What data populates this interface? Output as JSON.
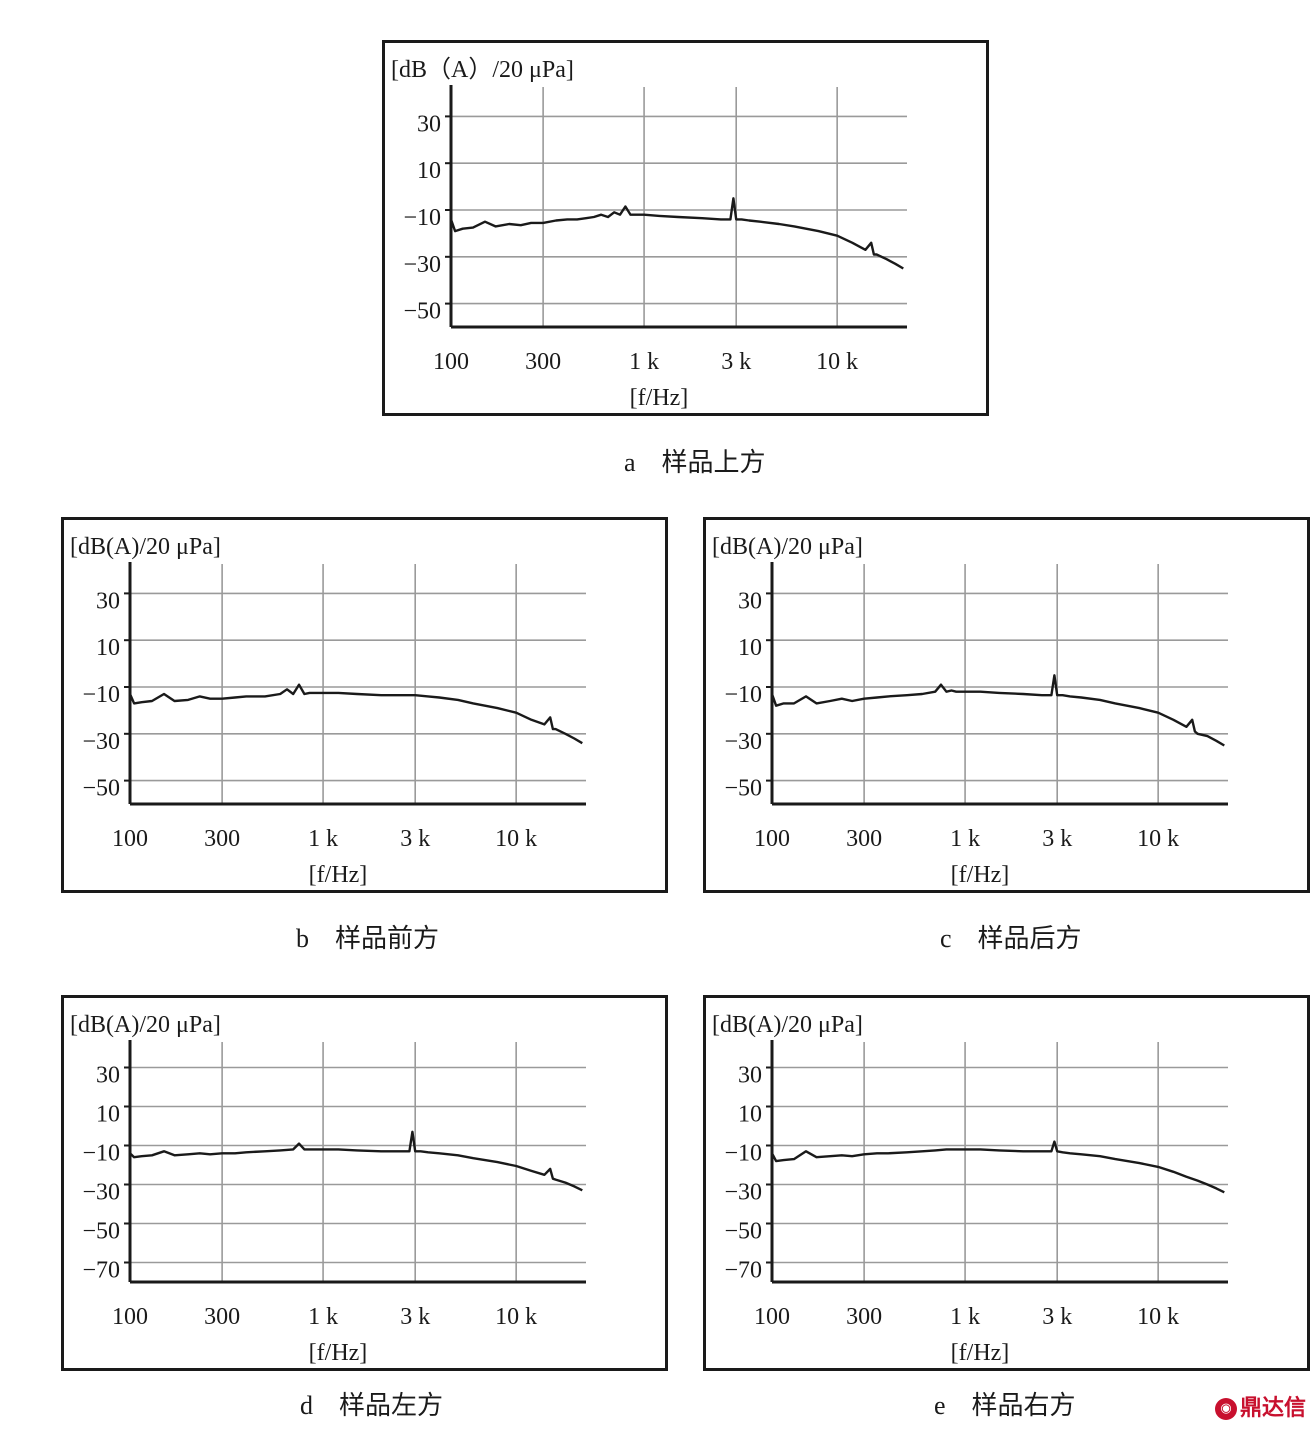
{
  "watermark": "鼎达信",
  "chart_data": [
    {
      "id": "a",
      "type": "line",
      "caption_letter": "a",
      "caption_text": "样品上方",
      "ylabel": "[dB（A）/20 μPa]",
      "xlabel": "[f/Hz]",
      "x_scale": "log",
      "xlim": [
        100,
        23000
      ],
      "ylim": [
        -60,
        40
      ],
      "x_ticks": [
        {
          "value": 100,
          "label": "100"
        },
        {
          "value": 300,
          "label": "300"
        },
        {
          "value": 1000,
          "label": "1 k"
        },
        {
          "value": 3000,
          "label": "3 k"
        },
        {
          "value": 10000,
          "label": "10 k"
        }
      ],
      "y_ticks": [
        {
          "value": 30,
          "label": "30"
        },
        {
          "value": 10,
          "label": "10"
        },
        {
          "value": -10,
          "label": "−10"
        },
        {
          "value": -30,
          "label": "−30"
        },
        {
          "value": -50,
          "label": "−50"
        }
      ],
      "grid": true,
      "series": [
        {
          "x": [
            100,
            105,
            115,
            130,
            150,
            170,
            200,
            230,
            260,
            300,
            350,
            400,
            450,
            500,
            550,
            600,
            650,
            700,
            750,
            800,
            850,
            900,
            1000,
            1200,
            1500,
            2000,
            2500,
            2800,
            2900,
            3000,
            3200,
            3500,
            4000,
            5000,
            6000,
            8000,
            10000,
            12000,
            14000,
            15000,
            15500,
            16000,
            18000,
            20000,
            22000
          ],
          "y": [
            -14,
            -19,
            -18,
            -17.5,
            -15,
            -17,
            -16,
            -16.5,
            -15.5,
            -15.5,
            -14.5,
            -14,
            -14,
            -13.5,
            -13,
            -12,
            -13,
            -11,
            -12,
            -8.5,
            -12,
            -12,
            -12,
            -12.5,
            -13,
            -13.5,
            -14,
            -14,
            -5,
            -14,
            -14,
            -14.5,
            -15,
            -16,
            -17,
            -19,
            -21,
            -24,
            -27,
            -24,
            -29,
            -29,
            -31,
            -33,
            -35
          ]
        }
      ]
    },
    {
      "id": "b",
      "type": "line",
      "caption_letter": "b",
      "caption_text": "样品前方",
      "ylabel": "[dB(A)/20 μPa]",
      "xlabel": "[f/Hz]",
      "x_scale": "log",
      "xlim": [
        100,
        23000
      ],
      "ylim": [
        -60,
        40
      ],
      "x_ticks": [
        {
          "value": 100,
          "label": "100"
        },
        {
          "value": 300,
          "label": "300"
        },
        {
          "value": 1000,
          "label": "1 k"
        },
        {
          "value": 3000,
          "label": "3 k"
        },
        {
          "value": 10000,
          "label": "10 k"
        }
      ],
      "y_ticks": [
        {
          "value": 30,
          "label": "30"
        },
        {
          "value": 10,
          "label": "10"
        },
        {
          "value": -10,
          "label": "−10"
        },
        {
          "value": -30,
          "label": "−30"
        },
        {
          "value": -50,
          "label": "−50"
        }
      ],
      "grid": true,
      "series": [
        {
          "x": [
            100,
            105,
            115,
            130,
            150,
            170,
            200,
            230,
            260,
            300,
            350,
            400,
            500,
            600,
            650,
            700,
            750,
            800,
            850,
            900,
            1000,
            1200,
            1500,
            2000,
            2500,
            3000,
            3500,
            4000,
            5000,
            6000,
            8000,
            10000,
            12000,
            14000,
            15000,
            15500,
            16000,
            18000,
            20000,
            22000
          ],
          "y": [
            -13,
            -17,
            -16.5,
            -16,
            -13,
            -16,
            -15.5,
            -14,
            -15,
            -15,
            -14.5,
            -14,
            -14,
            -13,
            -11,
            -13,
            -9,
            -13,
            -12.5,
            -12.5,
            -12.5,
            -12.5,
            -13,
            -13.5,
            -13.5,
            -13.5,
            -14,
            -14.5,
            -15.5,
            -17,
            -19,
            -21,
            -24,
            -26,
            -23,
            -28,
            -28,
            -30,
            -32,
            -34
          ]
        }
      ]
    },
    {
      "id": "c",
      "type": "line",
      "caption_letter": "c",
      "caption_text": "样品后方",
      "ylabel": "[dB(A)/20 μPa]",
      "xlabel": "[f/Hz]",
      "x_scale": "log",
      "xlim": [
        100,
        23000
      ],
      "ylim": [
        -60,
        40
      ],
      "x_ticks": [
        {
          "value": 100,
          "label": "100"
        },
        {
          "value": 300,
          "label": "300"
        },
        {
          "value": 1000,
          "label": "1 k"
        },
        {
          "value": 3000,
          "label": "3 k"
        },
        {
          "value": 10000,
          "label": "10 k"
        }
      ],
      "y_ticks": [
        {
          "value": 30,
          "label": "30"
        },
        {
          "value": 10,
          "label": "10"
        },
        {
          "value": -10,
          "label": "−10"
        },
        {
          "value": -30,
          "label": "−30"
        },
        {
          "value": -50,
          "label": "−50"
        }
      ],
      "grid": true,
      "series": [
        {
          "x": [
            100,
            105,
            115,
            130,
            150,
            170,
            200,
            230,
            260,
            300,
            350,
            400,
            500,
            600,
            700,
            750,
            800,
            850,
            900,
            1000,
            1200,
            1500,
            2000,
            2500,
            2800,
            2900,
            3000,
            3200,
            3500,
            4000,
            5000,
            6000,
            8000,
            10000,
            12000,
            14000,
            15000,
            15500,
            16000,
            18000,
            20000,
            22000
          ],
          "y": [
            -13,
            -18,
            -17,
            -17,
            -14,
            -17,
            -16,
            -15,
            -16,
            -15,
            -14.5,
            -14,
            -13.5,
            -13,
            -12,
            -9,
            -12,
            -11.5,
            -12,
            -12,
            -12,
            -12.5,
            -13,
            -13.5,
            -13.5,
            -5,
            -13.5,
            -13.5,
            -14,
            -14.5,
            -15.5,
            -17,
            -19,
            -21,
            -24,
            -27,
            -24,
            -29,
            -30,
            -31,
            -33,
            -35
          ]
        }
      ]
    },
    {
      "id": "d",
      "type": "line",
      "caption_letter": "d",
      "caption_text": "样品左方",
      "ylabel": "[dB(A)/20 μPa]",
      "xlabel": "[f/Hz]",
      "x_scale": "log",
      "xlim": [
        100,
        23000
      ],
      "ylim": [
        -80,
        40
      ],
      "x_ticks": [
        {
          "value": 100,
          "label": "100"
        },
        {
          "value": 300,
          "label": "300"
        },
        {
          "value": 1000,
          "label": "1 k"
        },
        {
          "value": 3000,
          "label": "3 k"
        },
        {
          "value": 10000,
          "label": "10 k"
        }
      ],
      "y_ticks": [
        {
          "value": 30,
          "label": "30"
        },
        {
          "value": 10,
          "label": "10"
        },
        {
          "value": -10,
          "label": "−10"
        },
        {
          "value": -30,
          "label": "−30"
        },
        {
          "value": -50,
          "label": "−50"
        },
        {
          "value": -70,
          "label": "−70"
        }
      ],
      "grid": true,
      "series": [
        {
          "x": [
            100,
            105,
            115,
            130,
            150,
            170,
            200,
            230,
            260,
            300,
            350,
            400,
            500,
            600,
            700,
            750,
            800,
            850,
            900,
            1000,
            1200,
            1500,
            2000,
            2500,
            2800,
            2900,
            3000,
            3200,
            3500,
            4000,
            5000,
            6000,
            8000,
            10000,
            12000,
            14000,
            15000,
            15500,
            16000,
            18000,
            20000,
            22000
          ],
          "y": [
            -14,
            -16,
            -15.5,
            -15,
            -13,
            -15,
            -14.5,
            -14,
            -14.5,
            -14,
            -14,
            -13.5,
            -13,
            -12.5,
            -12,
            -9,
            -12,
            -12,
            -12,
            -12,
            -12,
            -12.5,
            -13,
            -13,
            -13,
            -3,
            -13,
            -13,
            -13.5,
            -14,
            -15,
            -16.5,
            -18.5,
            -20.5,
            -23,
            -25,
            -22,
            -27,
            -27.5,
            -29,
            -31,
            -33
          ]
        }
      ]
    },
    {
      "id": "e",
      "type": "line",
      "caption_letter": "e",
      "caption_text": "样品右方",
      "ylabel": "[dB(A)/20 μPa]",
      "xlabel": "[f/Hz]",
      "x_scale": "log",
      "xlim": [
        100,
        23000
      ],
      "ylim": [
        -80,
        40
      ],
      "x_ticks": [
        {
          "value": 100,
          "label": "100"
        },
        {
          "value": 300,
          "label": "300"
        },
        {
          "value": 1000,
          "label": "1 k"
        },
        {
          "value": 3000,
          "label": "3 k"
        },
        {
          "value": 10000,
          "label": "10 k"
        }
      ],
      "y_ticks": [
        {
          "value": 30,
          "label": "30"
        },
        {
          "value": 10,
          "label": "10"
        },
        {
          "value": -10,
          "label": "−10"
        },
        {
          "value": -30,
          "label": "−30"
        },
        {
          "value": -50,
          "label": "−50"
        },
        {
          "value": -70,
          "label": "−70"
        }
      ],
      "grid": true,
      "series": [
        {
          "x": [
            100,
            105,
            115,
            130,
            150,
            170,
            200,
            230,
            260,
            300,
            350,
            400,
            500,
            600,
            700,
            800,
            900,
            1000,
            1200,
            1500,
            2000,
            2500,
            2800,
            2900,
            3000,
            3200,
            3500,
            4000,
            5000,
            6000,
            8000,
            10000,
            12000,
            14000,
            16000,
            18000,
            20000,
            22000
          ],
          "y": [
            -14,
            -18,
            -17.5,
            -17,
            -13,
            -16,
            -15.5,
            -15,
            -15.5,
            -14.5,
            -14,
            -14,
            -13.5,
            -13,
            -12.5,
            -12,
            -12,
            -12,
            -12,
            -12.5,
            -13,
            -13,
            -13,
            -8,
            -13,
            -13.5,
            -14,
            -14.5,
            -15.5,
            -17,
            -19,
            -21,
            -23.5,
            -26,
            -28,
            -30,
            -32,
            -34
          ]
        }
      ]
    }
  ]
}
